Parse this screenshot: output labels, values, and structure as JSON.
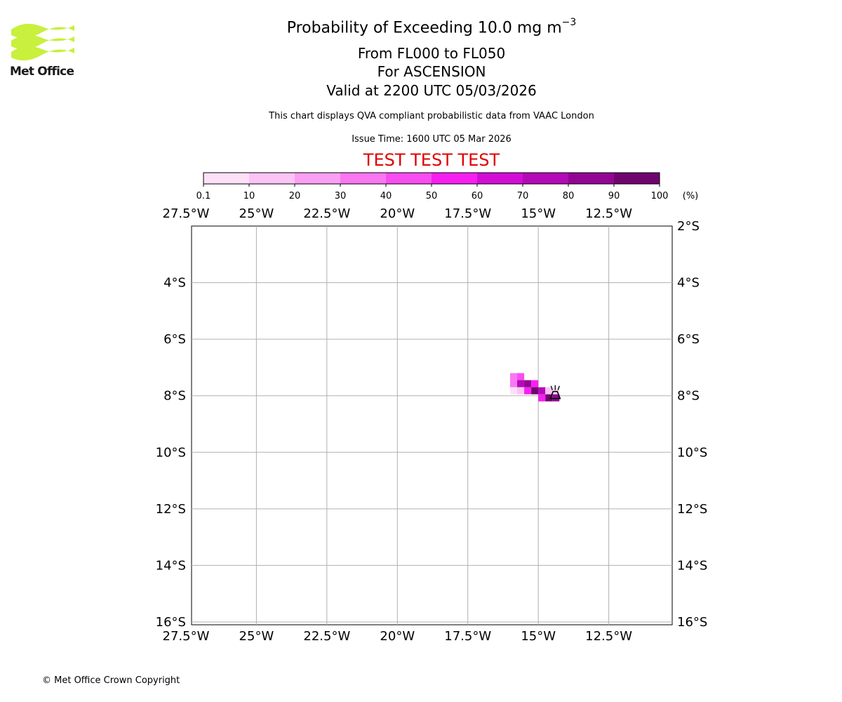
{
  "logo": {
    "text": "Met Office",
    "icon": "met-office-wave-logo-icon",
    "color": "#c8f03c"
  },
  "header": {
    "title_main": "Probability of Exceeding 10.0 mg m",
    "title_exp": "−3",
    "level": "From FL000 to FL050",
    "location": "For ASCENSION",
    "valid": "Valid at 2200 UTC 05/03/2026",
    "note": "This chart displays QVA compliant probabilistic data from VAAC London",
    "issue": "Issue Time: 1600 UTC 05 Mar 2026",
    "test_banner": "TEST TEST TEST",
    "test_color": "#e00000"
  },
  "colorbar": {
    "unit_label": "(%)",
    "tick_labels": [
      "0.1",
      "10",
      "20",
      "30",
      "40",
      "50",
      "60",
      "70",
      "80",
      "90",
      "100"
    ],
    "colors": [
      "#fde0f8",
      "#fbc4f5",
      "#fa9ff3",
      "#f977f1",
      "#f84df0",
      "#f71ff0",
      "#d20ed6",
      "#b40ab8",
      "#930693",
      "#700570"
    ]
  },
  "map": {
    "x_labels": [
      "27.5°W",
      "25°W",
      "22.5°W",
      "20°W",
      "17.5°W",
      "15°W",
      "12.5°W"
    ],
    "y_labels": [
      "2°S",
      "4°S",
      "6°S",
      "8°S",
      "10°S",
      "12°S",
      "14°S",
      "16°S"
    ],
    "grid_color": "#b0b0b0",
    "volcano_icon": "volcano-symbol-icon",
    "cells": [
      {
        "lon_w": 16.0,
        "lat_s": 7.2,
        "pct": 35
      },
      {
        "lon_w": 15.75,
        "lat_s": 7.2,
        "pct": 45
      },
      {
        "lon_w": 16.0,
        "lat_s": 7.45,
        "pct": 32
      },
      {
        "lon_w": 15.75,
        "lat_s": 7.45,
        "pct": 75
      },
      {
        "lon_w": 15.5,
        "lat_s": 7.45,
        "pct": 82
      },
      {
        "lon_w": 15.25,
        "lat_s": 7.45,
        "pct": 55
      },
      {
        "lon_w": 16.0,
        "lat_s": 7.7,
        "pct": 8
      },
      {
        "lon_w": 15.75,
        "lat_s": 7.7,
        "pct": 15
      },
      {
        "lon_w": 15.5,
        "lat_s": 7.7,
        "pct": 58
      },
      {
        "lon_w": 15.25,
        "lat_s": 7.7,
        "pct": 92
      },
      {
        "lon_w": 15.0,
        "lat_s": 7.7,
        "pct": 78
      },
      {
        "lon_w": 14.75,
        "lat_s": 7.7,
        "pct": 15
      },
      {
        "lon_w": 14.5,
        "lat_s": 7.7,
        "pct": 8
      },
      {
        "lon_w": 15.0,
        "lat_s": 7.95,
        "pct": 55
      },
      {
        "lon_w": 14.75,
        "lat_s": 7.95,
        "pct": 92
      },
      {
        "lon_w": 14.5,
        "lat_s": 7.95,
        "pct": 85
      }
    ],
    "volcano": {
      "lon_w": 14.4,
      "lat_s": 7.95
    }
  },
  "footer": {
    "copyright": "© Met Office Crown Copyright"
  }
}
